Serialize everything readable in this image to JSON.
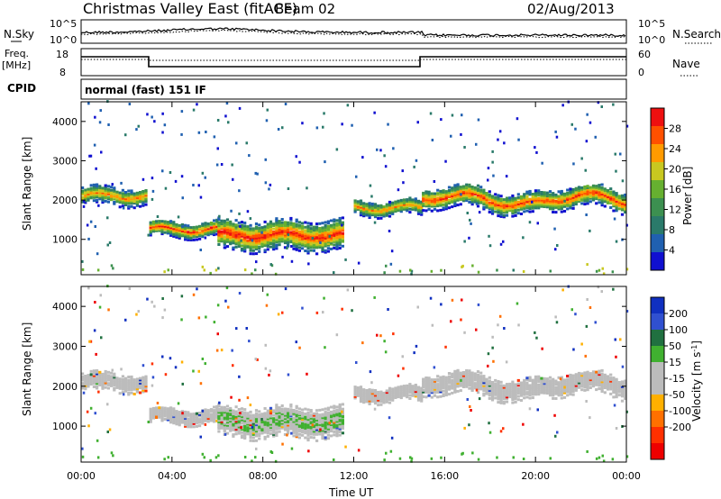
{
  "header": {
    "station": "Christmas Valley East (fitACF)",
    "beam": "Beam 02",
    "date": "02/Aug/2013"
  },
  "noise_panel": {
    "left_label": "N.Sky",
    "right_label": "N.Search",
    "left_ticks": [
      "10^5",
      "10^0"
    ],
    "right_ticks": [
      "10^5",
      "10^0"
    ]
  },
  "freq_panel": {
    "left_label_1": "Freq.",
    "left_label_2": "[MHz]",
    "right_label": "Nave",
    "left_ticks": [
      "18",
      "8"
    ],
    "right_ticks": [
      "60",
      "0"
    ]
  },
  "cpid": {
    "label": "CPID",
    "mode": "normal (fast) 151 IF"
  },
  "colors": {
    "power_scale": [
      "#1010d0",
      "#2060b0",
      "#2a7a6a",
      "#3c9050",
      "#66b030",
      "#c8c820",
      "#ff9a00",
      "#ff5000",
      "#ee1010"
    ],
    "velocity_scale": [
      "#1030c0",
      "#3050d0",
      "#207040",
      "#40b030",
      "#bcbcbc",
      "#bcbcbc",
      "#ffb000",
      "#ff7000",
      "#ff3000",
      "#ee0000"
    ]
  },
  "chart_data": [
    {
      "type": "heatmap",
      "name": "power",
      "ylabel": "Slant Range [km]",
      "y_ticks": [
        1000,
        2000,
        3000,
        4000
      ],
      "ylim": [
        100,
        4500
      ],
      "x_ticks": [
        "00:00",
        "04:00",
        "08:00",
        "12:00",
        "16:00",
        "20:00",
        "00:00"
      ],
      "xlim_hours": [
        0,
        24
      ],
      "colorbar": {
        "label": "Power [dB]",
        "ticks": [
          4,
          8,
          12,
          16,
          20,
          24,
          28
        ]
      },
      "echo_bands": [
        {
          "start_h": 0.0,
          "end_h": 2.8,
          "range_km": 2100,
          "width_km": 300,
          "peak_db": 24
        },
        {
          "start_h": 3.0,
          "end_h": 6.0,
          "range_km": 1250,
          "width_km": 250,
          "peak_db": 28
        },
        {
          "start_h": 6.0,
          "end_h": 11.5,
          "range_km": 1100,
          "width_km": 500,
          "peak_db": 30
        },
        {
          "start_h": 12.0,
          "end_h": 15.0,
          "range_km": 1800,
          "width_km": 250,
          "peak_db": 24
        },
        {
          "start_h": 15.0,
          "end_h": 24.0,
          "range_km": 2000,
          "width_km": 350,
          "peak_db": 28
        }
      ]
    },
    {
      "type": "heatmap",
      "name": "velocity",
      "ylabel": "Slant Range [km]",
      "y_ticks": [
        1000,
        2000,
        3000,
        4000
      ],
      "ylim": [
        100,
        4500
      ],
      "x_ticks": [
        "00:00",
        "04:00",
        "08:00",
        "12:00",
        "16:00",
        "20:00",
        "00:00"
      ],
      "xlabel": "Time UT",
      "colorbar": {
        "label": "Velocity [m s^-1]",
        "ticks": [
          200,
          100,
          50,
          15,
          -15,
          -50,
          -100,
          -200
        ]
      }
    }
  ]
}
